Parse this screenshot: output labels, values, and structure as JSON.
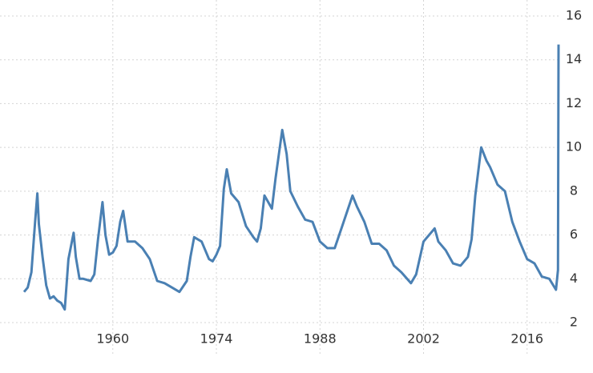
{
  "chart_data": {
    "type": "line",
    "x": [
      1948.0,
      1948.5,
      1949.0,
      1949.5,
      1949.8,
      1950.0,
      1950.5,
      1951.0,
      1951.5,
      1952.0,
      1952.5,
      1953.0,
      1953.5,
      1954.0,
      1954.7,
      1955.0,
      1955.5,
      1956.0,
      1957.0,
      1957.5,
      1958.0,
      1958.6,
      1959.0,
      1959.5,
      1960.0,
      1960.5,
      1961.0,
      1961.4,
      1962.0,
      1963.0,
      1964.0,
      1965.0,
      1966.0,
      1967.0,
      1968.0,
      1969.0,
      1970.0,
      1970.5,
      1971.0,
      1972.0,
      1973.0,
      1973.5,
      1974.0,
      1974.5,
      1975.0,
      1975.4,
      1976.0,
      1977.0,
      1978.0,
      1979.0,
      1979.5,
      1980.0,
      1980.5,
      1981.0,
      1981.5,
      1982.0,
      1982.9,
      1983.5,
      1984.0,
      1985.0,
      1986.0,
      1987.0,
      1988.0,
      1989.0,
      1990.0,
      1991.0,
      1992.4,
      1993.0,
      1994.0,
      1995.0,
      1996.0,
      1997.0,
      1998.0,
      1999.0,
      2000.3,
      2001.0,
      2002.0,
      2003.5,
      2004.0,
      2005.0,
      2006.0,
      2007.0,
      2008.0,
      2008.5,
      2009.0,
      2009.8,
      2010.5,
      2011.0,
      2012.0,
      2013.0,
      2014.0,
      2015.0,
      2016.0,
      2017.0,
      2018.0,
      2019.0,
      2019.9,
      2020.17,
      2020.25
    ],
    "series": [
      {
        "color": "#4a80b3",
        "values": [
          3.4,
          3.6,
          4.3,
          6.6,
          7.9,
          6.5,
          5.0,
          3.7,
          3.1,
          3.2,
          3.0,
          2.9,
          2.6,
          4.9,
          6.1,
          5.0,
          4.0,
          4.0,
          3.9,
          4.2,
          5.8,
          7.5,
          6.0,
          5.1,
          5.2,
          5.5,
          6.6,
          7.1,
          5.7,
          5.7,
          5.4,
          4.9,
          3.9,
          3.8,
          3.6,
          3.4,
          3.9,
          5.0,
          5.9,
          5.7,
          4.9,
          4.8,
          5.1,
          5.5,
          8.1,
          9.0,
          7.9,
          7.5,
          6.4,
          5.9,
          5.7,
          6.3,
          7.8,
          7.5,
          7.2,
          8.6,
          10.8,
          9.7,
          8.0,
          7.3,
          6.7,
          6.6,
          5.7,
          5.4,
          5.4,
          6.4,
          7.8,
          7.3,
          6.6,
          5.6,
          5.6,
          5.3,
          4.6,
          4.3,
          3.8,
          4.2,
          5.7,
          6.3,
          5.7,
          5.3,
          4.7,
          4.6,
          5.0,
          5.8,
          7.8,
          10.0,
          9.4,
          9.1,
          8.3,
          8.0,
          6.6,
          5.7,
          4.9,
          4.7,
          4.1,
          4.0,
          3.5,
          4.4,
          14.7
        ]
      }
    ],
    "xlim": [
      1948,
      2020.25
    ],
    "xticks": [
      1960,
      1974,
      1988,
      2002,
      2016
    ],
    "ylim": [
      2,
      16
    ],
    "yticks": [
      2,
      4,
      6,
      8,
      10,
      12,
      14,
      16
    ],
    "grid": true
  }
}
